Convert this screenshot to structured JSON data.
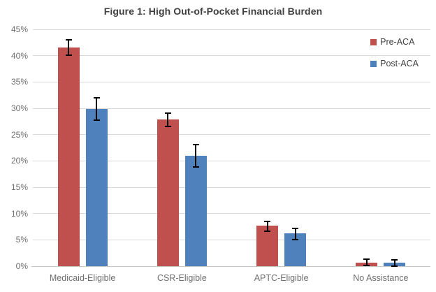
{
  "title": "Figure 1: High Out-of-Pocket Financial Burden",
  "legend": {
    "items": [
      {
        "label": "Pre-ACA",
        "color": "#C0504D"
      },
      {
        "label": "Post-ACA",
        "color": "#4F81BD"
      }
    ]
  },
  "chart_data": {
    "type": "bar",
    "title": "Figure 1: High Out-of-Pocket Financial Burden",
    "categories": [
      "Medicaid-Eligible",
      "CSR-Eligible",
      "APTC-Eligible",
      "No Assistance"
    ],
    "series": [
      {
        "name": "Pre-ACA",
        "color": "#C0504D",
        "values": [
          41.5,
          27.9,
          7.7,
          0.7
        ],
        "error_low": [
          40.1,
          26.6,
          6.6,
          0.1
        ],
        "error_high": [
          43.0,
          29.1,
          8.5,
          1.3
        ]
      },
      {
        "name": "Post-ACA",
        "color": "#4F81BD",
        "values": [
          29.9,
          21.0,
          6.2,
          0.6
        ],
        "error_low": [
          27.7,
          18.8,
          5.1,
          0.0
        ],
        "error_high": [
          32.0,
          23.1,
          7.2,
          1.2
        ]
      }
    ],
    "xlabel": "",
    "ylabel": "",
    "ylim": [
      0,
      45
    ],
    "ytick_step": 5,
    "ytick_labels": [
      "0%",
      "5%",
      "10%",
      "15%",
      "20%",
      "25%",
      "30%",
      "35%",
      "40%",
      "45%"
    ],
    "grid": true,
    "legend_position": "top-right",
    "error_bars": true,
    "colors": {
      "grid": "#d9d9d9",
      "baseline": "#c6c6c6",
      "axis_text": "#6e6e6e",
      "title_text": "#404040",
      "error_bar": "#000000"
    }
  }
}
